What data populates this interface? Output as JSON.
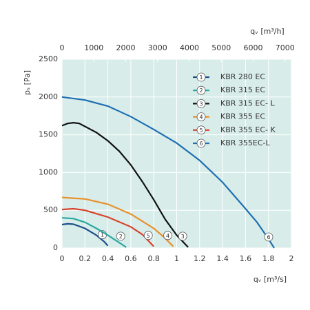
{
  "chart_data": {
    "type": "line",
    "x_label": "qᵥ [m³/s]",
    "x2_label": "qᵥ [m³/h]",
    "y_label": "pₛ [Pa]",
    "xlim": [
      0,
      2
    ],
    "xticks": [
      0,
      0.2,
      0.4,
      0.6,
      0.8,
      1,
      1.2,
      1.4,
      1.6,
      1.8,
      2
    ],
    "x2lim": [
      0,
      7200
    ],
    "x2ticks": [
      0,
      1000,
      2000,
      3000,
      4000,
      5000,
      6000,
      7000
    ],
    "ylim": [
      0,
      2500
    ],
    "yticks": [
      0,
      500,
      1000,
      1500,
      2000,
      2500
    ],
    "grid": true,
    "legend": "upper right",
    "series": [
      {
        "name": "KBR 280 EC",
        "label": "1",
        "color": "#1d4f8c",
        "x": [
          0,
          0.05,
          0.1,
          0.2,
          0.3,
          0.37,
          0.4
        ],
        "values": [
          310,
          320,
          315,
          260,
          170,
          80,
          30
        ]
      },
      {
        "name": "KBR 315 EC",
        "label": "2",
        "color": "#2aa8a0",
        "x": [
          0,
          0.1,
          0.2,
          0.3,
          0.4,
          0.5,
          0.56
        ],
        "values": [
          400,
          390,
          340,
          260,
          170,
          70,
          10
        ]
      },
      {
        "name": "KBR 315 EC- L",
        "label": "3",
        "color": "#111111",
        "x": [
          0,
          0.05,
          0.1,
          0.15,
          0.3,
          0.4,
          0.5,
          0.6,
          0.7,
          0.8,
          0.9,
          1.0,
          1.1
        ],
        "values": [
          1620,
          1650,
          1660,
          1650,
          1530,
          1420,
          1280,
          1100,
          880,
          640,
          380,
          170,
          10
        ]
      },
      {
        "name": "KBR 355 EC",
        "label": "4",
        "color": "#e8902a",
        "x": [
          0,
          0.2,
          0.4,
          0.6,
          0.8,
          0.9,
          0.97
        ],
        "values": [
          670,
          650,
          580,
          450,
          260,
          130,
          20
        ]
      },
      {
        "name": "KBR 355 EC- K",
        "label": "5",
        "color": "#d9412b",
        "x": [
          0,
          0.1,
          0.2,
          0.4,
          0.6,
          0.7,
          0.8
        ],
        "values": [
          510,
          520,
          500,
          410,
          280,
          180,
          20
        ]
      },
      {
        "name": "KBR 355EC-L",
        "label": "6",
        "color": "#1f6fb2",
        "x": [
          0,
          0.2,
          0.4,
          0.6,
          0.8,
          1.0,
          1.2,
          1.4,
          1.6,
          1.7,
          1.8,
          1.85
        ],
        "values": [
          2000,
          1960,
          1880,
          1740,
          1570,
          1390,
          1160,
          870,
          520,
          340,
          120,
          0
        ]
      }
    ]
  }
}
